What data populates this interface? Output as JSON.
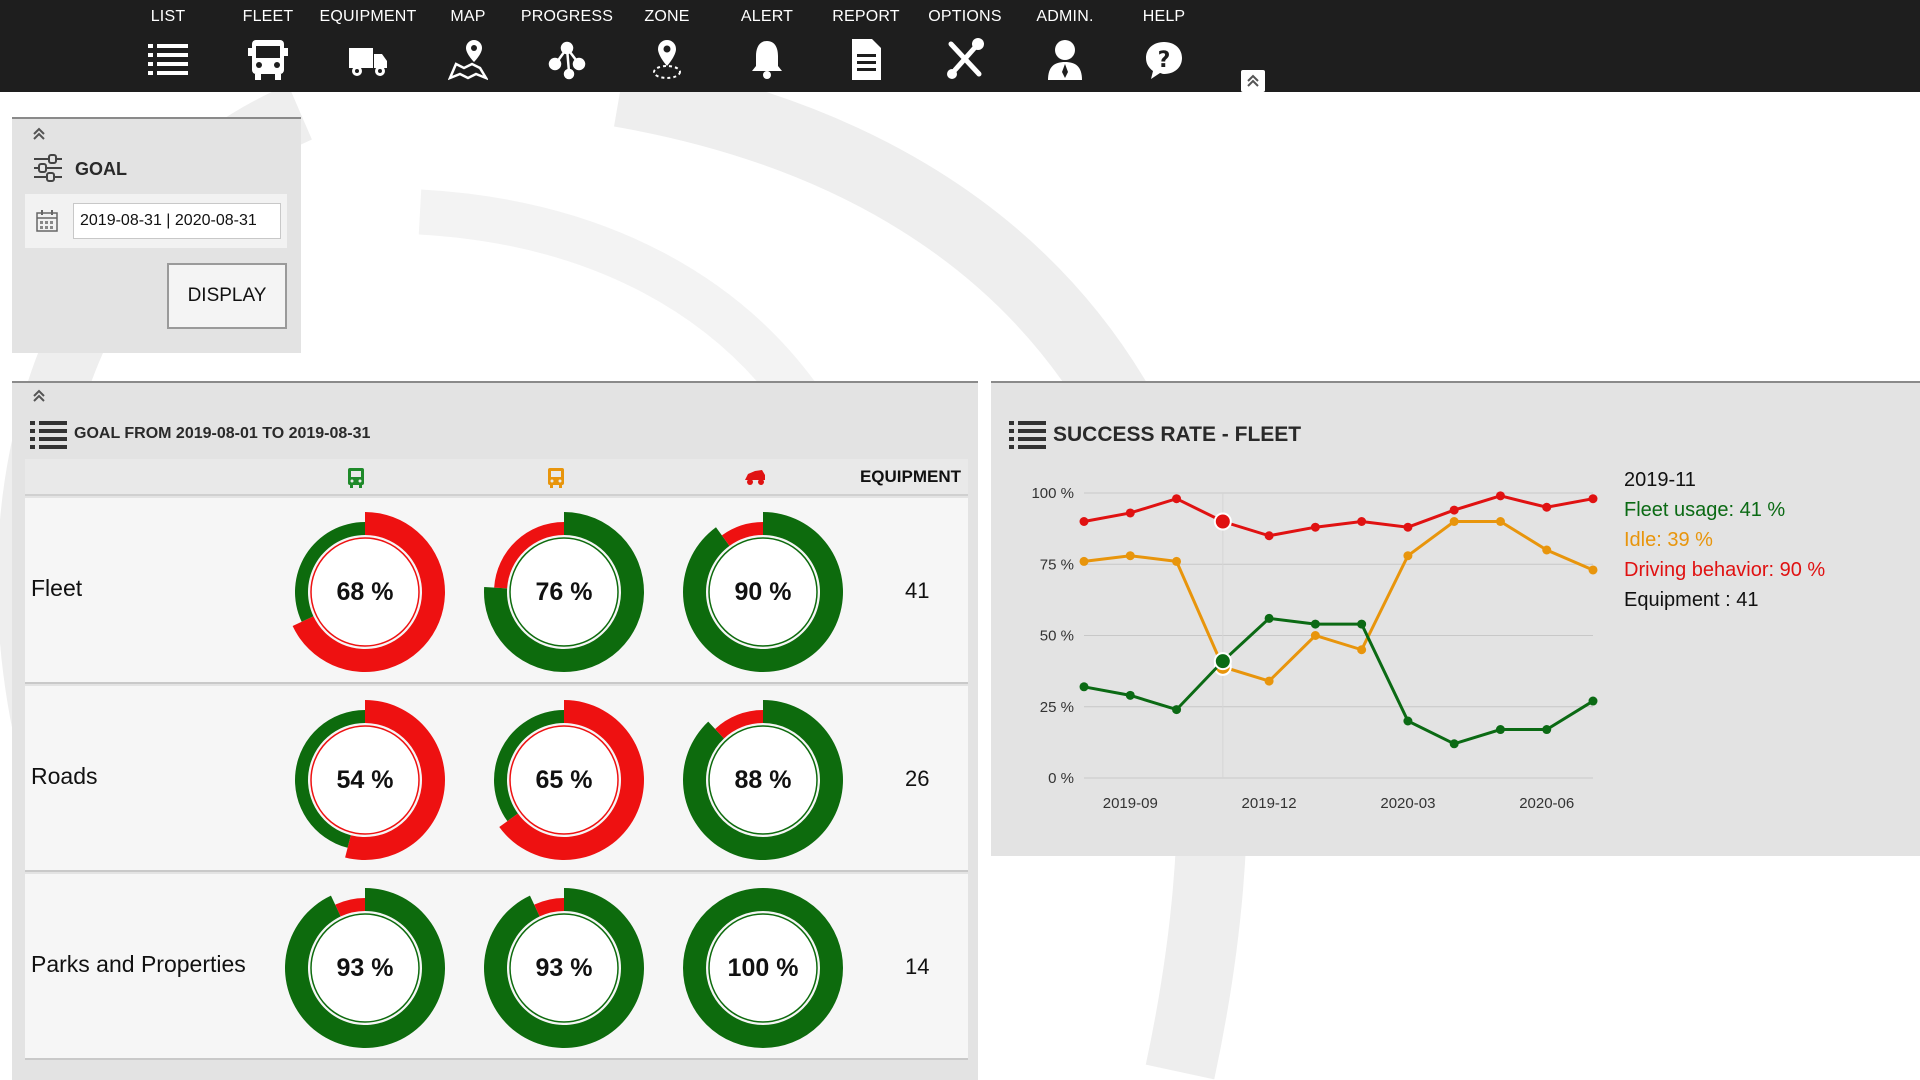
{
  "nav": {
    "items": [
      {
        "label": "LIST",
        "icon": "list-icon"
      },
      {
        "label": "FLEET",
        "icon": "bus-icon"
      },
      {
        "label": "EQUIPMENT",
        "icon": "truck-icon"
      },
      {
        "label": "MAP",
        "icon": "map-pin-icon"
      },
      {
        "label": "PROGRESS",
        "icon": "progress-icon"
      },
      {
        "label": "ZONE",
        "icon": "zone-icon"
      },
      {
        "label": "ALERT",
        "icon": "bell-icon"
      },
      {
        "label": "REPORT",
        "icon": "report-icon"
      },
      {
        "label": "OPTIONS",
        "icon": "tools-icon"
      },
      {
        "label": "ADMIN.",
        "icon": "user-icon"
      },
      {
        "label": "HELP",
        "icon": "help-icon"
      }
    ]
  },
  "goal": {
    "title": "GOAL",
    "date_range": "2019-08-31 | 2020-08-31",
    "display_label": "DISPLAY"
  },
  "goal_table": {
    "title": "GOAL FROM 2019-08-01 TO 2019-08-31",
    "column_icons": [
      "bus-icon",
      "bus-icon",
      "car-icon"
    ],
    "equipment_header": "EQUIPMENT",
    "rows": [
      {
        "name": "Fleet",
        "values": [
          68,
          76,
          90
        ],
        "labels": [
          "68 %",
          "76 %",
          "90 %"
        ],
        "equipment": "41"
      },
      {
        "name": "Roads",
        "values": [
          54,
          65,
          88
        ],
        "labels": [
          "54 %",
          "65 %",
          "88 %"
        ],
        "equipment": "26"
      },
      {
        "name": "Parks and Properties",
        "values": [
          93,
          93,
          100
        ],
        "labels": [
          "93 %",
          "93 %",
          "100 %"
        ],
        "equipment": "14"
      }
    ]
  },
  "colors": {
    "bad": "#ee1111",
    "good": "#0d6b0d",
    "green_series": "#0b6a14",
    "orange_series": "#e8950c",
    "red_series": "#e01212",
    "nav_bg": "#1e1e1e",
    "panel_bg": "#e3e3e3",
    "column_icons": [
      "#1f8a2a",
      "#e8950c",
      "#e01212"
    ]
  },
  "chart_title": "SUCCESS RATE - FLEET",
  "chart_data": {
    "type": "line",
    "x": [
      "2019-09",
      "2019-10",
      "2019-11",
      "2019-12",
      "2020-01",
      "2020-02",
      "2020-03",
      "2020-04",
      "2020-05",
      "2020-06",
      "2020-07"
    ],
    "x_tick_labels": [
      "2019-09",
      "2019-12",
      "2020-03",
      "2020-06"
    ],
    "y_tick_labels": [
      "100 %",
      "75 %",
      "50 %",
      "25 %",
      "0 %"
    ],
    "ylim": [
      0,
      100
    ],
    "x_range": [
      "2019-08",
      "2020-07"
    ],
    "grid": true,
    "series": [
      {
        "key": "red",
        "color_key": "red_series",
        "x": [
          "2019-08",
          "2019-09",
          "2019-10",
          "2019-11",
          "2019-12",
          "2020-01",
          "2020-02",
          "2020-03",
          "2020-04",
          "2020-05",
          "2020-06",
          "2020-07"
        ],
        "values": [
          90,
          93,
          98,
          90,
          85,
          88,
          90,
          88,
          94,
          99,
          95,
          98
        ]
      },
      {
        "key": "orange",
        "color_key": "orange_series",
        "x": [
          "2019-08",
          "2019-09",
          "2019-10",
          "2019-11",
          "2019-12",
          "2020-01",
          "2020-02",
          "2020-03",
          "2020-04",
          "2020-05",
          "2020-06",
          "2020-07"
        ],
        "values": [
          76,
          78,
          76,
          39,
          34,
          50,
          45,
          78,
          90,
          90,
          80,
          73
        ]
      },
      {
        "key": "green",
        "color_key": "green_series",
        "x": [
          "2019-08",
          "2019-09",
          "2019-10",
          "2019-11",
          "2019-12",
          "2020-01",
          "2020-02",
          "2020-03",
          "2020-04",
          "2020-05",
          "2020-06",
          "2020-07"
        ],
        "values": [
          32,
          29,
          24,
          41,
          56,
          54,
          54,
          20,
          12,
          17,
          17,
          27
        ]
      }
    ],
    "highlight_index": 3,
    "tooltip": {
      "date": "2019-11",
      "lines": [
        {
          "text": "Fleet usage: 41 %",
          "color_key": "green_series"
        },
        {
          "text": "Idle: 39 %",
          "color_key": "orange_series"
        },
        {
          "text": "Driving behavior: 90 %",
          "color_key": "red_series"
        },
        {
          "text": "Equipment : 41",
          "color_key": "text"
        }
      ]
    }
  }
}
